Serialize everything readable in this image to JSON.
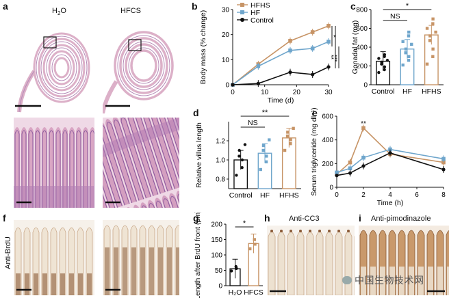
{
  "panels": {
    "a": {
      "label": "a",
      "left_title": "H",
      "left_title_sub": "2",
      "left_title_end": "O",
      "right_title": "HFCS"
    },
    "b": {
      "label": "b"
    },
    "c": {
      "label": "c"
    },
    "d": {
      "label": "d"
    },
    "e": {
      "label": "e"
    },
    "f": {
      "label": "f",
      "side_label": "Anti-BrdU"
    },
    "g": {
      "label": "g"
    },
    "h": {
      "label": "h",
      "title": "Anti-CC3"
    },
    "i": {
      "label": "i",
      "title": "Anti-pimodinazole"
    }
  },
  "colors": {
    "control": "#111111",
    "hf": "#6fa6cc",
    "hfhs": "#c79466",
    "he_pink": "#e6c2d3",
    "he_purple": "#8a5a9e",
    "brdu": "#8a5a36"
  },
  "watermark": "中国生物技术网",
  "chart_data": [
    {
      "id": "b",
      "type": "line",
      "xlabel": "Time (d)",
      "ylabel": "Body mass (% change)",
      "xlim": [
        0,
        30
      ],
      "ylim": [
        0,
        30
      ],
      "xticks": [
        "0",
        "10",
        "20",
        "30"
      ],
      "yticks": [
        "0",
        "10",
        "20",
        "30"
      ],
      "legend_placement": "top-left",
      "series": [
        {
          "name": "HFHS",
          "color": "#c79466",
          "x": [
            0,
            8,
            18,
            25,
            30
          ],
          "y": [
            0,
            8.2,
            17.5,
            21,
            23.5
          ]
        },
        {
          "name": "HF",
          "color": "#6fa6cc",
          "x": [
            0,
            8,
            18,
            25,
            30
          ],
          "y": [
            0,
            7.4,
            13.7,
            14.5,
            17.2
          ]
        },
        {
          "name": "Control",
          "color": "#111111",
          "x": [
            0,
            8,
            18,
            25,
            30
          ],
          "y": [
            0,
            0.5,
            5,
            4.1,
            7.1
          ]
        }
      ],
      "annotations": [
        "*",
        "**",
        "***"
      ]
    },
    {
      "id": "c",
      "type": "bar",
      "ylabel": "Gonadal fat (mg)",
      "ylim": [
        0,
        800
      ],
      "yticks": [
        "0",
        "200",
        "400",
        "600",
        "800"
      ],
      "categories": [
        "Control",
        "HF",
        "HFHS"
      ],
      "values": [
        250,
        380,
        530
      ],
      "colors": [
        "#111111",
        "#6fa6cc",
        "#c79466"
      ],
      "points": [
        [
          130,
          160,
          190,
          220,
          240,
          260,
          280,
          300,
          320
        ],
        [
          210,
          260,
          300,
          340,
          380,
          430,
          460,
          520,
          560
        ],
        [
          220,
          300,
          380,
          470,
          520,
          560,
          600,
          650,
          700
        ]
      ],
      "annotations": [
        "NS",
        "*"
      ]
    },
    {
      "id": "d",
      "type": "bar",
      "ylabel": "Relative villus length",
      "ylim": [
        0.7,
        1.4
      ],
      "yticks": [
        "0.8",
        "1.0",
        "1.2"
      ],
      "categories": [
        "Control",
        "HF",
        "HFHS"
      ],
      "values": [
        1.0,
        1.07,
        1.23
      ],
      "colors": [
        "#111111",
        "#6fa6cc",
        "#c79466"
      ],
      "points": [
        [
          0.84,
          0.92,
          1.0,
          1.04,
          1.1,
          1.16
        ],
        [
          0.9,
          0.98,
          1.04,
          1.1,
          1.15,
          1.21
        ],
        [
          1.1,
          1.17,
          1.21,
          1.25,
          1.29,
          1.33
        ]
      ],
      "annotations": [
        "NS",
        "**"
      ]
    },
    {
      "id": "e",
      "type": "line",
      "xlabel": "Time (h)",
      "ylabel": "Serum triglyceride (mg dl⁻¹)",
      "xlim": [
        0,
        8
      ],
      "ylim": [
        0,
        600
      ],
      "xticks": [
        "0",
        "2",
        "4",
        "6",
        "8"
      ],
      "yticks": [
        "0",
        "200",
        "400",
        "600"
      ],
      "series": [
        {
          "color": "#c79466",
          "x": [
            0,
            1,
            2,
            4,
            8
          ],
          "y": [
            110,
            210,
            500,
            280,
            210
          ]
        },
        {
          "color": "#6fa6cc",
          "x": [
            0,
            1,
            2,
            4,
            8
          ],
          "y": [
            125,
            160,
            250,
            320,
            240
          ]
        },
        {
          "color": "#111111",
          "x": [
            0,
            1,
            2,
            4,
            8
          ],
          "y": [
            100,
            120,
            180,
            290,
            150
          ]
        }
      ],
      "annotations": [
        "**"
      ]
    },
    {
      "id": "g",
      "type": "bar",
      "ylabel": "Length after BrdU front (μm)",
      "ylim": [
        0,
        200
      ],
      "yticks": [
        "0",
        "50",
        "100",
        "150",
        "200"
      ],
      "categories": [
        "H₂O",
        "HFCS"
      ],
      "values": [
        55,
        137
      ],
      "colors": [
        "#111111",
        "#c79466"
      ],
      "points": [
        [
          48,
          56,
          62
        ],
        [
          120,
          135,
          150
        ]
      ],
      "annotations": [
        "*"
      ]
    }
  ]
}
